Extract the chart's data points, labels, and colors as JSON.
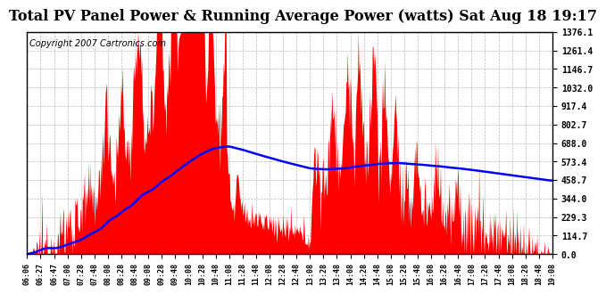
{
  "title": "Total PV Panel Power & Running Average Power (watts) Sat Aug 18 19:17",
  "copyright": "Copyright 2007 Cartronics.com",
  "yticks": [
    0.0,
    114.7,
    229.3,
    344.0,
    458.7,
    573.4,
    688.0,
    802.7,
    917.4,
    1032.0,
    1146.7,
    1261.4,
    1376.1
  ],
  "ymax": 1376.1,
  "ymin": 0.0,
  "bg_color": "#ffffff",
  "grid_color": "#aaaaaa",
  "fill_color": "#ff0000",
  "line_color": "#0000ff",
  "title_fontsize": 11.5,
  "copyright_fontsize": 7,
  "xtick_labels": [
    "06:06",
    "06:27",
    "06:47",
    "07:08",
    "07:28",
    "07:48",
    "08:08",
    "08:28",
    "08:48",
    "09:08",
    "09:28",
    "09:48",
    "10:08",
    "10:28",
    "10:48",
    "11:08",
    "11:28",
    "11:48",
    "12:08",
    "12:28",
    "12:48",
    "13:08",
    "13:28",
    "13:48",
    "14:08",
    "14:28",
    "14:48",
    "15:08",
    "15:28",
    "15:48",
    "16:08",
    "16:28",
    "16:48",
    "17:08",
    "17:28",
    "17:48",
    "18:08",
    "18:28",
    "18:48",
    "19:08"
  ]
}
